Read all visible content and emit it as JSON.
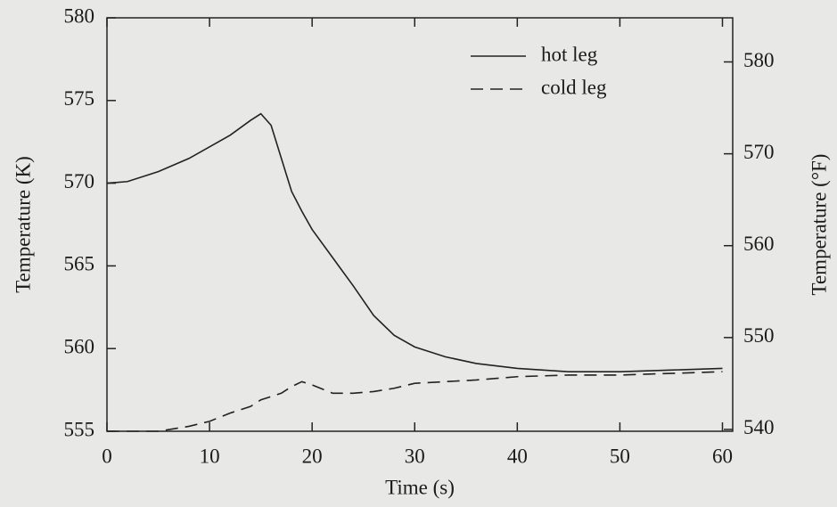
{
  "chart_data": {
    "type": "line",
    "x_label": "Time (s)",
    "y_label": "Temperature (K)",
    "y2_label": "Temperature (°F)",
    "x": [
      0,
      2,
      5,
      8,
      10,
      12,
      14,
      15,
      16,
      17,
      18,
      19,
      20,
      22,
      24,
      26,
      28,
      30,
      33,
      36,
      40,
      45,
      50,
      55,
      60
    ],
    "series": [
      {
        "name": "hot leg",
        "color": "#222222",
        "dash": "solid",
        "values": [
          570.0,
          570.1,
          570.7,
          571.5,
          572.2,
          572.9,
          573.8,
          574.2,
          573.5,
          571.5,
          569.5,
          568.3,
          567.2,
          565.5,
          563.8,
          562.0,
          560.8,
          560.1,
          559.5,
          559.1,
          558.8,
          558.6,
          558.6,
          558.7,
          558.8
        ]
      },
      {
        "name": "cold leg",
        "color": "#222222",
        "dash": "dashed",
        "values": [
          555.0,
          555.0,
          555.0,
          555.3,
          555.6,
          556.1,
          556.5,
          556.9,
          557.1,
          557.3,
          557.7,
          558.0,
          557.8,
          557.3,
          557.3,
          557.4,
          557.6,
          557.9,
          558.0,
          558.1,
          558.3,
          558.4,
          558.4,
          558.5,
          558.6
        ]
      }
    ],
    "xlim": [
      0,
      61
    ],
    "xticks": [
      0,
      10,
      20,
      30,
      40,
      50,
      60
    ],
    "ylim": [
      555,
      580
    ],
    "yticks": [
      555,
      560,
      565,
      570,
      575,
      580
    ],
    "y2lim": [
      539.8,
      584.8
    ],
    "y2ticks": [
      540,
      550,
      560,
      570,
      580
    ],
    "legend": "upper right",
    "grid": false
  }
}
